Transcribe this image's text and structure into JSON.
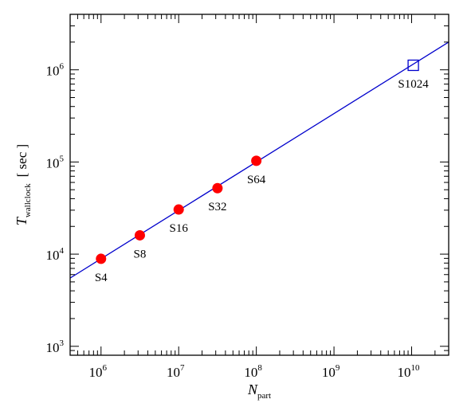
{
  "chart_data": {
    "type": "scatter",
    "title": "",
    "x_scale": "log",
    "y_scale": "log",
    "xlim": [
      400000,
      30000000000
    ],
    "ylim": [
      800,
      4000000
    ],
    "xlabel": {
      "symbol": "N",
      "subscript": "part",
      "unit": ""
    },
    "ylabel": {
      "symbol": "T",
      "subscript": "wallclock",
      "unit": "[ sec ]"
    },
    "x_ticks": [
      {
        "base": "10",
        "exp": "6",
        "value": 1000000
      },
      {
        "base": "10",
        "exp": "7",
        "value": 10000000
      },
      {
        "base": "10",
        "exp": "8",
        "value": 100000000
      },
      {
        "base": "10",
        "exp": "9",
        "value": 1000000000
      },
      {
        "base": "10",
        "exp": "10",
        "value": 10000000000
      }
    ],
    "y_ticks": [
      {
        "base": "10",
        "exp": "3",
        "value": 1000
      },
      {
        "base": "10",
        "exp": "4",
        "value": 10000
      },
      {
        "base": "10",
        "exp": "5",
        "value": 100000
      },
      {
        "base": "10",
        "exp": "6",
        "value": 1000000
      }
    ],
    "series": [
      {
        "marker": "filled-circle",
        "color": "#ff0000",
        "points": [
          {
            "label": "S4",
            "x": 1000000,
            "y": 8900
          },
          {
            "label": "S8",
            "x": 3160000,
            "y": 16000
          },
          {
            "label": "S16",
            "x": 10000000,
            "y": 30500
          },
          {
            "label": "S32",
            "x": 31600000,
            "y": 52000
          },
          {
            "label": "S64",
            "x": 100000000,
            "y": 103000
          }
        ]
      },
      {
        "marker": "open-square",
        "color": "#0000cc",
        "points": [
          {
            "label": "S1024",
            "x": 10500000000,
            "y": 1120000
          }
        ]
      }
    ],
    "fit_line": {
      "color": "#0000cc",
      "points": [
        {
          "x": 400000,
          "y": 5500
        },
        {
          "x": 30000000000,
          "y": 2000000
        }
      ]
    },
    "grid": false,
    "legend": "none"
  }
}
